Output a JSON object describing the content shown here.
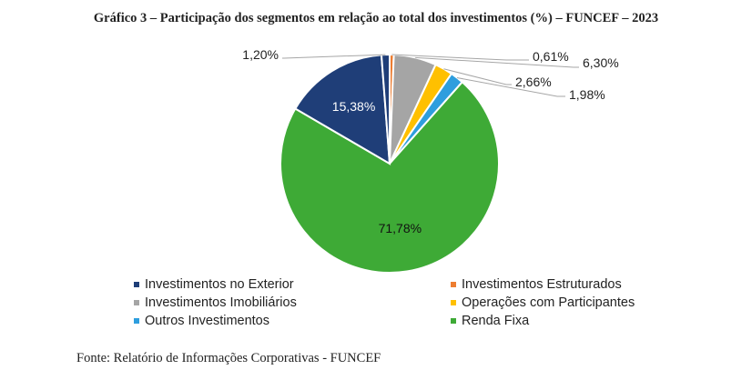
{
  "chart_data": {
    "type": "pie",
    "title": "Gráfico 3 – Participação dos segmentos em relação ao total dos investimentos (%) – FUNCEF – 2023",
    "source": "Fonte: Relatório de Informações Corporativas - FUNCEF",
    "legend_position": "bottom",
    "slices": [
      {
        "name": "Investimentos Estruturados",
        "value": 0.61,
        "label": "0,61%",
        "color": "#ed7d31"
      },
      {
        "name": "Investimentos Imobiliários",
        "value": 6.3,
        "label": "6,30%",
        "color": "#a5a5a5"
      },
      {
        "name": "Operações com Participantes",
        "value": 2.66,
        "label": "2,66%",
        "color": "#ffc000"
      },
      {
        "name": "Outros Investimentos",
        "value": 1.98,
        "label": "1,98%",
        "color": "#2e9ede"
      },
      {
        "name": "Renda Fixa",
        "value": 71.78,
        "label": "71,78%",
        "color": "#3eaa36"
      },
      {
        "name": "Investimentos no Exterior",
        "value": 15.38,
        "label": "15,38%",
        "color": "#1f3e78"
      },
      {
        "name": "",
        "value": 1.2,
        "label": "1,20%",
        "color": "#1f3e78"
      }
    ],
    "legend": [
      {
        "name": "Investimentos no Exterior",
        "color": "#1f3e78"
      },
      {
        "name": "Investimentos Estruturados",
        "color": "#ed7d31"
      },
      {
        "name": "Investimentos Imobiliários",
        "color": "#a5a5a5"
      },
      {
        "name": "Operações com Participantes",
        "color": "#ffc000"
      },
      {
        "name": "Outros Investimentos",
        "color": "#2e9ede"
      },
      {
        "name": "Renda Fixa",
        "color": "#3eaa36"
      }
    ]
  }
}
